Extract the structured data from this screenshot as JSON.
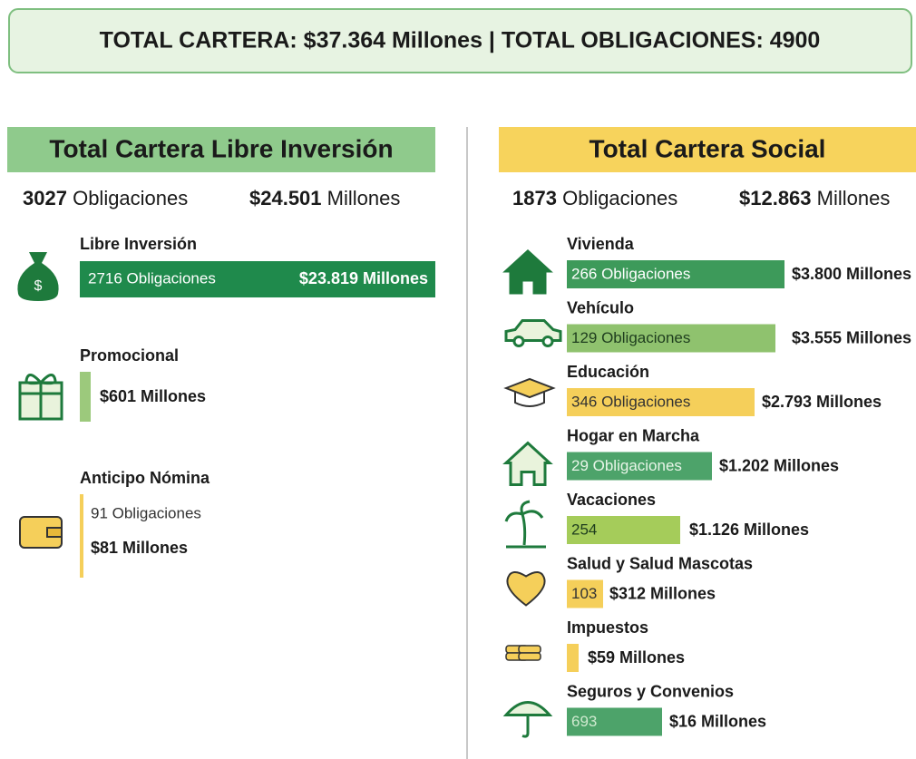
{
  "header": {
    "title": "TOTAL CARTERA: $37.364 Millones | TOTAL OBLIGACIONES: 4900"
  },
  "left": {
    "title": "Total Cartera Libre Inversión",
    "count": "3027",
    "count_unit": "Obligaciones",
    "amount": "$24.501",
    "amount_unit": "Millones",
    "items": [
      {
        "label": "Libre Inversión",
        "count": "2716 Obligaciones",
        "amount": "$23.819 Millones"
      },
      {
        "label": "Promocional",
        "amount": "$601 Millones"
      },
      {
        "label": "Anticipo Nómina",
        "count": "91 Obligaciones",
        "amount": "$81 Millones"
      }
    ]
  },
  "right": {
    "title": "Total Cartera Social",
    "count": "1873",
    "count_unit": "Obligaciones",
    "amount": "$12.863",
    "amount_unit": "Millones",
    "items": [
      {
        "label": "Vivienda",
        "count": "266 Obligaciones",
        "amount": "$3.800 Millones"
      },
      {
        "label": "Vehículo",
        "count": "129 Obligaciones",
        "amount": "$3.555 Millones"
      },
      {
        "label": "Educación",
        "count": "346 Obligaciones",
        "amount": "$2.793 Millones"
      },
      {
        "label": "Hogar en Marcha",
        "count": "29 Obligaciones",
        "amount": "$1.202 Millones"
      },
      {
        "label": "Vacaciones",
        "count": "254",
        "amount": "$1.126 Millones"
      },
      {
        "label": "Salud y Salud Mascotas",
        "count": "103",
        "amount": "$312 Millones"
      },
      {
        "label": "Impuestos",
        "amount": "$59 Millones"
      },
      {
        "label": "Seguros y Convenios",
        "count": "693",
        "amount": "$16 Millones"
      }
    ]
  }
}
